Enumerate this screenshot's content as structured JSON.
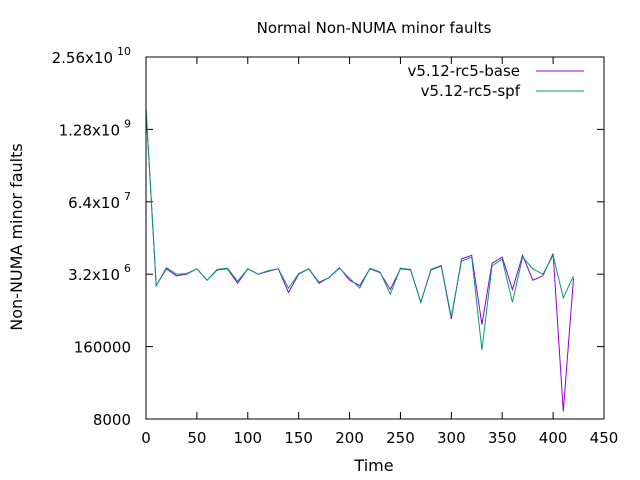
{
  "chart_data": {
    "type": "line",
    "title": "Normal Non-NUMA minor faults",
    "xlabel": "Time",
    "ylabel": "Non-NUMA minor faults",
    "xlim": [
      0,
      450
    ],
    "ylim": [
      8000,
      25600000000
    ],
    "yscale": "log",
    "grid": false,
    "legend_position": "top-right",
    "x_ticks": [
      "0",
      "50",
      "100",
      "150",
      "200",
      "250",
      "300",
      "350",
      "400",
      "450"
    ],
    "y_ticks": [
      {
        "value": 8000,
        "label": "8000",
        "exp": ""
      },
      {
        "value": 160000,
        "label": "160000",
        "exp": ""
      },
      {
        "value": 3200000,
        "label": "3.2x10",
        "exp": "6"
      },
      {
        "value": 64000000,
        "label": "6.4x10",
        "exp": "7"
      },
      {
        "value": 1280000000,
        "label": "1.28x10",
        "exp": "9"
      },
      {
        "value": 25600000000,
        "label": "2.56x10",
        "exp": "10"
      }
    ],
    "series": [
      {
        "name": "v5.12-rc5-base",
        "color": "#9400d3",
        "x": [
          0,
          10,
          20,
          30,
          40,
          50,
          60,
          70,
          80,
          90,
          100,
          110,
          120,
          130,
          140,
          150,
          160,
          170,
          180,
          190,
          200,
          210,
          220,
          230,
          240,
          250,
          260,
          270,
          280,
          290,
          300,
          310,
          320,
          330,
          340,
          350,
          360,
          370,
          380,
          390,
          400,
          410,
          420
        ],
        "y": [
          3000000000,
          2000000,
          4000000,
          3000000,
          3200000,
          4000000,
          2500000,
          3800000,
          4000000,
          2200000,
          4000000,
          3200000,
          3600000,
          4000000,
          1500000,
          3200000,
          4000000,
          2200000,
          2800000,
          4200000,
          2500000,
          2000000,
          4000000,
          3400000,
          1700000,
          4000000,
          3800000,
          1000000,
          3800000,
          4500000,
          500000,
          6000000,
          7000000,
          400000,
          5000000,
          6500000,
          1700000,
          7000000,
          2500000,
          3000000,
          7500000,
          11000,
          2700000
        ]
      },
      {
        "name": "v5.12-rc5-spf",
        "color": "#009e73",
        "x": [
          0,
          10,
          20,
          30,
          40,
          50,
          60,
          70,
          80,
          90,
          100,
          110,
          120,
          130,
          140,
          150,
          160,
          170,
          180,
          190,
          200,
          210,
          220,
          230,
          240,
          250,
          260,
          270,
          280,
          290,
          300,
          310,
          320,
          330,
          340,
          350,
          360,
          370,
          380,
          390,
          400,
          410,
          420
        ],
        "y": [
          3000000000,
          2000000,
          4200000,
          3200000,
          3300000,
          4000000,
          2500000,
          3900000,
          4100000,
          2400000,
          4000000,
          3200000,
          3700000,
          4000000,
          1800000,
          3300000,
          4000000,
          2300000,
          2800000,
          4100000,
          2700000,
          1800000,
          4100000,
          3500000,
          1400000,
          4100000,
          3900000,
          1000000,
          3900000,
          4600000,
          550000,
          5500000,
          6500000,
          140000,
          4500000,
          6000000,
          1000000,
          6500000,
          4000000,
          3200000,
          7000000,
          1200000,
          3000000
        ]
      }
    ]
  }
}
